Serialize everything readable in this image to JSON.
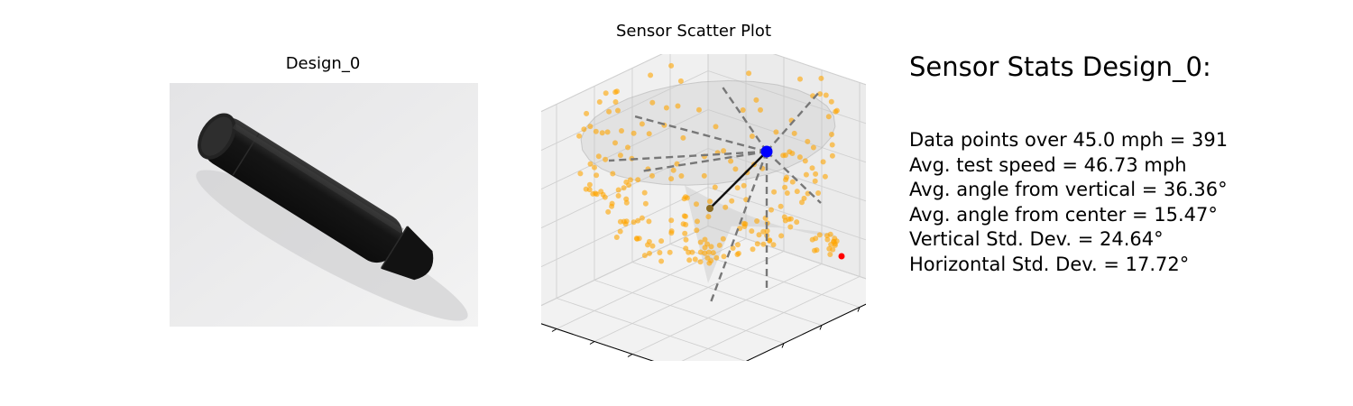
{
  "design": {
    "title": "Design_0"
  },
  "stats": {
    "heading": "Sensor Stats Design_0:",
    "lines": [
      "Data points over 45.0 mph = 391",
      "Avg. test speed = 46.73 mph",
      "Avg. angle from vertical = 36.36°",
      "Avg. angle from center = 15.47°",
      "Vertical Std. Dev. = 24.64°",
      "Horizontal Std. Dev. = 17.72°"
    ]
  },
  "colors": {
    "points": "#ffa500",
    "mean_marker": "#0000ff",
    "outlier": "#ff0000",
    "surface": "#c8c8c8",
    "object": "#1a1a1a",
    "photo_background": "#e9e9e9"
  },
  "chart_data": {
    "type": "scatter",
    "title": "Sensor Scatter Plot",
    "projection": "3d",
    "grid": true,
    "tick_labels": false,
    "series": [
      {
        "values": []
      }
    ],
    "marker_colors": [
      "#ffa500",
      "#0000ff",
      "#ff0000"
    ],
    "surface": "hemisphere",
    "point_count": 391
  }
}
